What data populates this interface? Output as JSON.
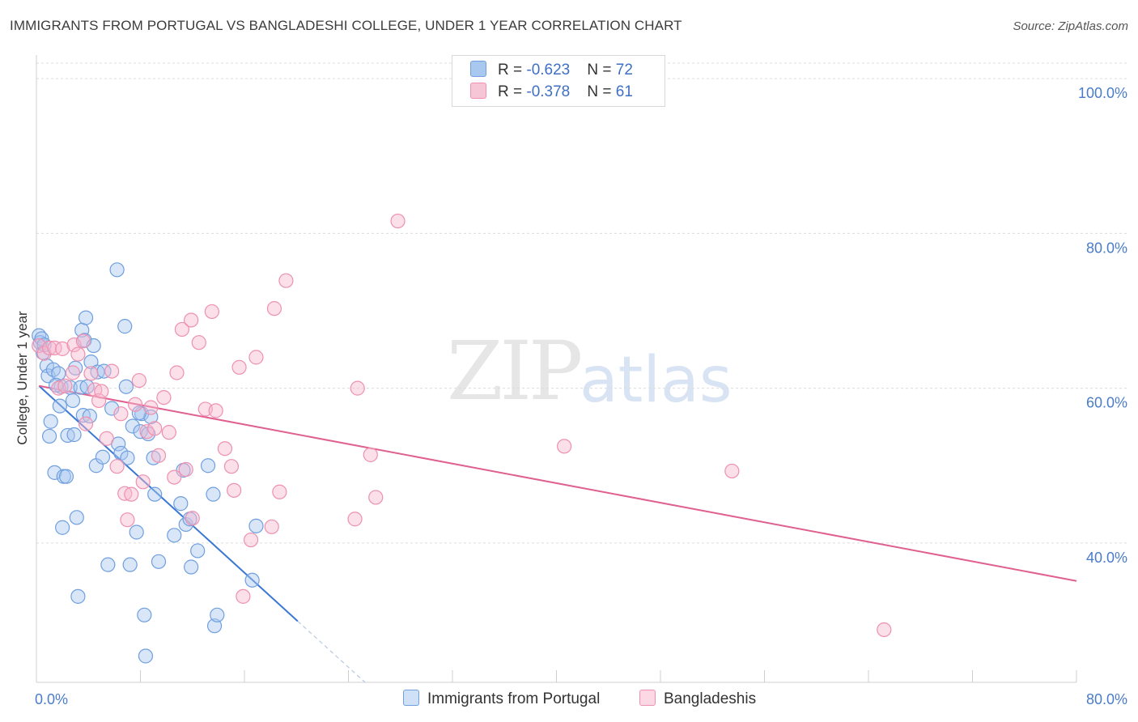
{
  "header": {
    "title": "IMMIGRANTS FROM PORTUGAL VS BANGLADESHI COLLEGE, UNDER 1 YEAR CORRELATION CHART",
    "source": "Source: ZipAtlas.com"
  },
  "watermark": {
    "zip": "ZIP",
    "atlas": "atlas"
  },
  "legend": {
    "rows": [
      {
        "r_label": "R = ",
        "r_value": "-0.623",
        "n_label": "N = ",
        "n_value": "72",
        "color": "#a9c8f0"
      },
      {
        "r_label": "R = ",
        "r_value": "-0.378",
        "n_label": "N = ",
        "n_value": "61",
        "color": "#f7b9ce"
      }
    ]
  },
  "bottom_legend": {
    "items": [
      {
        "label": "Immigrants from Portugal",
        "color": "#a9c8f0"
      },
      {
        "label": "Bangladeshis",
        "color": "#f7b9ce"
      }
    ]
  },
  "chart_data": {
    "type": "scatter",
    "title": "IMMIGRANTS FROM PORTUGAL VS BANGLADESHI COLLEGE, UNDER 1 YEAR CORRELATION CHART",
    "ylabel": "College, Under 1 year",
    "xlabel": "",
    "xlim": [
      0,
      80
    ],
    "ylim": [
      22,
      102
    ],
    "x_tick_labels": [
      {
        "value": 0,
        "label": "0.0%"
      },
      {
        "value": 80,
        "label": "80.0%"
      }
    ],
    "y_tick_labels": [
      {
        "value": 100,
        "label": "100.0%"
      },
      {
        "value": 80,
        "label": "80.0%"
      },
      {
        "value": 60,
        "label": "60.0%"
      },
      {
        "value": 40,
        "label": "40.0%"
      }
    ],
    "grid": true,
    "legend_position": "top-center",
    "series": [
      {
        "name": "Immigrants from Portugal",
        "color": "#a9c8f0",
        "stroke": "#6f9fdf",
        "line_color": "#3a78d4",
        "trend": {
          "x": [
            0.2,
            20.1
          ],
          "y": [
            60.3,
            29.9
          ]
        },
        "trend_extension": {
          "x": [
            20.1,
            26
          ],
          "y": [
            29.9,
            20.9
          ]
        },
        "points": [
          [
            0.2,
            66.8
          ],
          [
            0.3,
            65.9
          ],
          [
            0.4,
            66.4
          ],
          [
            0.5,
            64.6
          ],
          [
            0.6,
            65.6
          ],
          [
            0.8,
            62.9
          ],
          [
            0.9,
            61.6
          ],
          [
            1.0,
            53.8
          ],
          [
            1.1,
            55.7
          ],
          [
            1.3,
            62.4
          ],
          [
            1.4,
            49.1
          ],
          [
            1.7,
            61.9
          ],
          [
            1.8,
            57.7
          ],
          [
            1.9,
            60.2
          ],
          [
            2.1,
            48.6
          ],
          [
            2.0,
            42.0
          ],
          [
            2.3,
            48.6
          ],
          [
            2.4,
            53.9
          ],
          [
            2.6,
            60.1
          ],
          [
            2.9,
            54.0
          ],
          [
            3.0,
            62.6
          ],
          [
            3.1,
            43.3
          ],
          [
            3.2,
            33.1
          ],
          [
            3.4,
            60.1
          ],
          [
            3.5,
            67.5
          ],
          [
            3.6,
            56.5
          ],
          [
            3.7,
            66.2
          ],
          [
            3.8,
            69.1
          ],
          [
            3.9,
            60.2
          ],
          [
            4.2,
            63.4
          ],
          [
            4.1,
            56.4
          ],
          [
            4.4,
            65.5
          ],
          [
            4.6,
            50.0
          ],
          [
            4.7,
            62.1
          ],
          [
            5.1,
            51.1
          ],
          [
            5.5,
            37.2
          ],
          [
            5.8,
            57.4
          ],
          [
            6.2,
            75.3
          ],
          [
            6.3,
            52.8
          ],
          [
            6.5,
            51.6
          ],
          [
            6.8,
            68.0
          ],
          [
            6.9,
            60.2
          ],
          [
            7.0,
            51.0
          ],
          [
            7.2,
            37.2
          ],
          [
            7.4,
            55.1
          ],
          [
            7.7,
            41.4
          ],
          [
            8.0,
            54.4
          ],
          [
            8.1,
            56.7
          ],
          [
            8.3,
            30.7
          ],
          [
            8.4,
            25.4
          ],
          [
            8.6,
            54.1
          ],
          [
            8.8,
            56.3
          ],
          [
            9.0,
            51.0
          ],
          [
            9.1,
            46.3
          ],
          [
            9.4,
            37.6
          ],
          [
            10.6,
            41.0
          ],
          [
            11.1,
            45.1
          ],
          [
            11.3,
            49.4
          ],
          [
            11.5,
            42.4
          ],
          [
            11.8,
            43.1
          ],
          [
            11.9,
            36.9
          ],
          [
            12.4,
            39.0
          ],
          [
            13.2,
            50.0
          ],
          [
            13.6,
            46.3
          ],
          [
            13.7,
            29.3
          ],
          [
            13.9,
            30.7
          ],
          [
            16.9,
            42.2
          ],
          [
            16.6,
            35.2
          ],
          [
            7.9,
            56.8
          ],
          [
            2.8,
            58.4
          ],
          [
            5.2,
            62.2
          ],
          [
            1.5,
            60.4
          ]
        ]
      },
      {
        "name": "Bangladeshis",
        "color": "#f7b9ce",
        "stroke": "#ee90b0",
        "line_color": "#e0608f",
        "trend": {
          "x": [
            0.2,
            80.0
          ],
          "y": [
            60.3,
            35.1
          ]
        },
        "points": [
          [
            0.2,
            65.5
          ],
          [
            0.6,
            64.5
          ],
          [
            1.0,
            65.2
          ],
          [
            1.4,
            65.2
          ],
          [
            1.7,
            60.0
          ],
          [
            2.0,
            65.1
          ],
          [
            2.2,
            60.3
          ],
          [
            2.8,
            62.0
          ],
          [
            2.9,
            65.6
          ],
          [
            3.2,
            64.4
          ],
          [
            3.6,
            66.1
          ],
          [
            3.8,
            55.4
          ],
          [
            4.2,
            61.9
          ],
          [
            4.5,
            59.8
          ],
          [
            4.8,
            58.4
          ],
          [
            5.0,
            59.6
          ],
          [
            5.4,
            53.5
          ],
          [
            5.8,
            62.2
          ],
          [
            6.2,
            49.9
          ],
          [
            6.5,
            56.7
          ],
          [
            6.8,
            46.4
          ],
          [
            7.0,
            43.0
          ],
          [
            7.3,
            46.3
          ],
          [
            7.6,
            57.9
          ],
          [
            7.9,
            61.0
          ],
          [
            8.2,
            47.9
          ],
          [
            8.5,
            54.4
          ],
          [
            8.8,
            57.5
          ],
          [
            9.1,
            54.8
          ],
          [
            9.4,
            51.3
          ],
          [
            9.8,
            58.8
          ],
          [
            10.2,
            54.3
          ],
          [
            10.6,
            48.5
          ],
          [
            10.8,
            62.0
          ],
          [
            11.2,
            67.6
          ],
          [
            11.5,
            49.5
          ],
          [
            11.9,
            68.8
          ],
          [
            12.0,
            43.2
          ],
          [
            12.5,
            65.9
          ],
          [
            13.0,
            57.3
          ],
          [
            13.5,
            69.9
          ],
          [
            13.8,
            57.1
          ],
          [
            14.5,
            52.2
          ],
          [
            15.0,
            49.9
          ],
          [
            15.2,
            46.8
          ],
          [
            15.6,
            62.7
          ],
          [
            15.9,
            33.1
          ],
          [
            16.5,
            40.4
          ],
          [
            16.9,
            64.0
          ],
          [
            18.3,
            70.3
          ],
          [
            18.7,
            46.6
          ],
          [
            19.2,
            73.9
          ],
          [
            18.1,
            42.1
          ],
          [
            24.7,
            60.0
          ],
          [
            25.7,
            51.4
          ],
          [
            26.1,
            45.9
          ],
          [
            24.5,
            43.1
          ],
          [
            27.8,
            81.6
          ],
          [
            40.6,
            52.5
          ],
          [
            53.5,
            49.3
          ],
          [
            65.2,
            28.8
          ]
        ]
      }
    ]
  }
}
